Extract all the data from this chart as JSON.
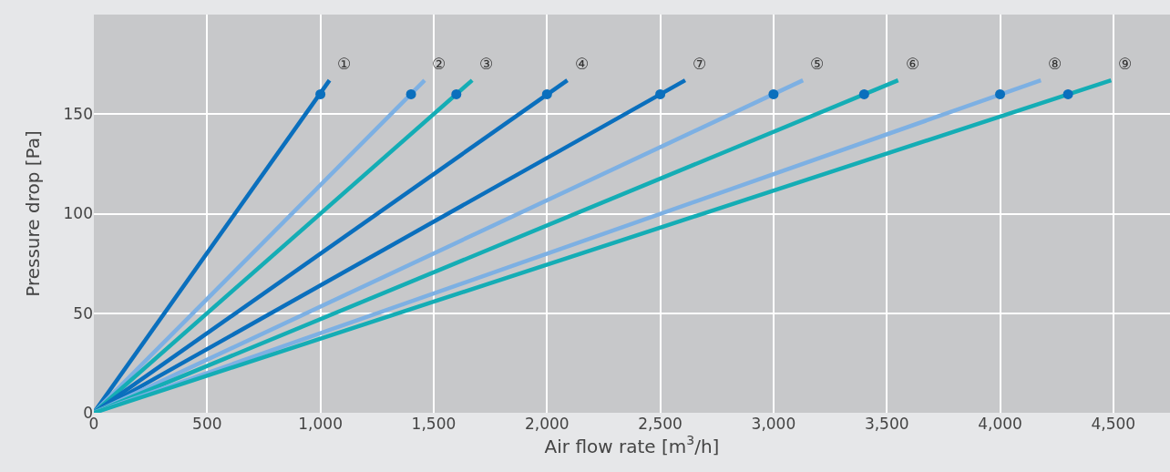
{
  "chart_data": {
    "type": "line",
    "xlabel": "Air flow rate [m$^{3}$/h]",
    "ylabel": "Pressure drop [Pa]",
    "xlim": [
      0,
      4750
    ],
    "xticks": [
      0,
      {
        "value": 500,
        "label": "500"
      },
      {
        "value": 1000,
        "label": "1,000"
      },
      {
        "value": 1500,
        "label": "1,500"
      },
      {
        "value": 2000,
        "label": "2,000"
      },
      {
        "value": 2500,
        "label": "2,500"
      },
      {
        "value": 3000,
        "label": "3,000"
      },
      {
        "value": 3500,
        "label": "3,500"
      },
      {
        "value": 4000,
        "label": "4,000"
      },
      {
        "value": 4500,
        "label": "4,500"
      }
    ],
    "ylim": [
      0,
      200
    ],
    "yticks": [
      0,
      50,
      100,
      150
    ],
    "grid": true,
    "legend": false,
    "line_style": "solid",
    "series": [
      {
        "name": "①",
        "color": "#0a6fbd",
        "x": [
          0,
          1040
        ],
        "values": [
          0,
          167
        ]
      },
      {
        "name": "②",
        "color": "#7db0e3",
        "x": [
          0,
          1460
        ],
        "values": [
          0,
          167
        ]
      },
      {
        "name": "③",
        "color": "#14adb5",
        "x": [
          0,
          1670
        ],
        "values": [
          0,
          167
        ]
      },
      {
        "name": "④",
        "color": "#0a6fbd",
        "x": [
          0,
          2090
        ],
        "values": [
          0,
          167
        ]
      },
      {
        "name": "⑦",
        "color": "#0a6fbd",
        "x": [
          0,
          2610
        ],
        "values": [
          0,
          167
        ]
      },
      {
        "name": "⑤",
        "color": "#7db0e3",
        "x": [
          0,
          3130
        ],
        "values": [
          0,
          167
        ]
      },
      {
        "name": "⑥",
        "color": "#14adb5",
        "x": [
          0,
          3550
        ],
        "values": [
          0,
          167
        ]
      },
      {
        "name": "⑧",
        "color": "#7db0e3",
        "x": [
          0,
          4180
        ],
        "values": [
          0,
          167
        ]
      },
      {
        "name": "⑨",
        "color": "#14adb5",
        "x": [
          0,
          4490
        ],
        "values": [
          0,
          167
        ]
      },
      {
        "type": "scatter",
        "marker": "circle",
        "color": "#0a6fbd",
        "x": [
          1000,
          1400,
          1600,
          2000,
          2500,
          3000,
          3400,
          4000,
          4300
        ],
        "values": [
          160,
          160,
          160,
          160,
          160,
          160,
          160,
          160,
          160
        ]
      }
    ]
  }
}
